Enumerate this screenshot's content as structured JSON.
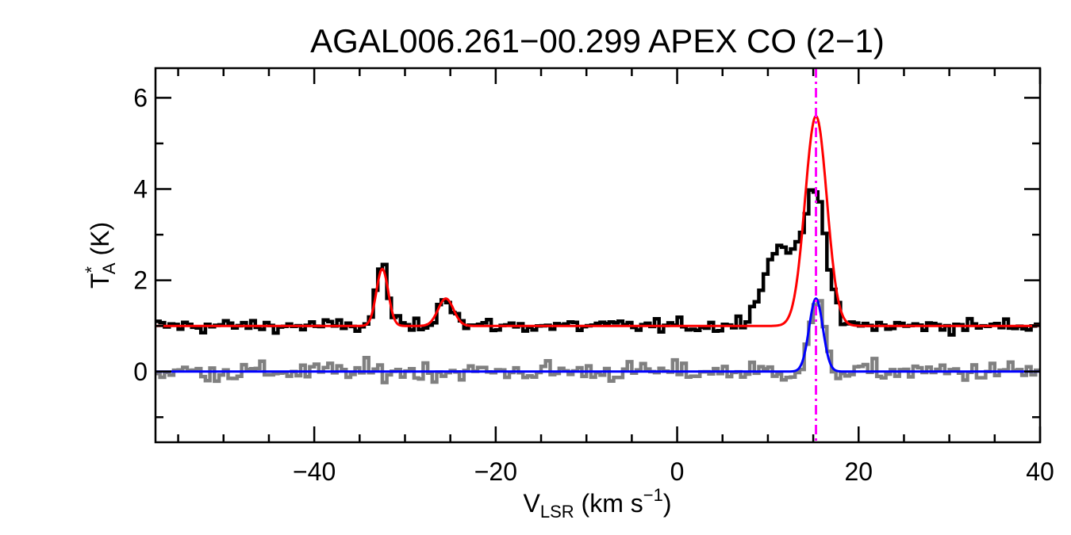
{
  "chart_data": {
    "type": "line",
    "title": "AGAL006.261−00.299  APEX CO (2−1)",
    "xlabel": {
      "main": "V",
      "sub": "LSR",
      "unit_pre": " (km s",
      "sup": "−1",
      "unit_post": ")"
    },
    "ylabel": {
      "main": "T",
      "sup": "*",
      "sub": "A",
      "unit": " (K)"
    },
    "xlim": [
      -57.5,
      40
    ],
    "ylim": [
      -1.55,
      6.65
    ],
    "xticks": [
      -40,
      -20,
      0,
      20,
      40
    ],
    "xtick_labels": [
      "−40",
      "−20",
      "0",
      "20",
      "40"
    ],
    "yticks": [
      0,
      2,
      4,
      6
    ],
    "ytick_labels": [
      "0",
      "2",
      "4",
      "6"
    ],
    "grid": false,
    "reference_line": {
      "x": 15.3,
      "color": "#ff00ff",
      "style": "dash-dot"
    },
    "series": [
      {
        "role": "observed spectrum (offset +1 K)",
        "color": "#000000",
        "style": "histogram",
        "baseline": 1.0,
        "noise_rms": 0.09,
        "components": [
          {
            "center": -32.5,
            "amplitude": 1.35,
            "sigma": 0.65
          },
          {
            "center": -25.5,
            "amplitude": 0.65,
            "sigma": 0.85
          },
          {
            "center": 11.5,
            "amplitude": 1.75,
            "sigma": 1.9
          },
          {
            "center": 15.3,
            "amplitude": 2.85,
            "sigma": 1.15
          }
        ]
      },
      {
        "role": "fit to observed spectrum",
        "color": "#ff0000",
        "style": "line",
        "baseline": 1.0,
        "components": [
          {
            "center": -32.5,
            "amplitude": 1.25,
            "sigma": 0.65
          },
          {
            "center": -25.5,
            "amplitude": 0.6,
            "sigma": 0.85
          },
          {
            "center": 15.3,
            "amplitude": 4.6,
            "sigma": 1.2
          }
        ]
      },
      {
        "role": "second spectrum",
        "color": "#808080",
        "style": "histogram",
        "baseline": 0.0,
        "noise_rms": 0.13,
        "components": [
          {
            "center": 15.4,
            "amplitude": 1.55,
            "sigma": 0.75
          }
        ]
      },
      {
        "role": "fit to second spectrum",
        "color": "#0000ff",
        "style": "line",
        "baseline": 0.0,
        "components": [
          {
            "center": 15.3,
            "amplitude": 1.6,
            "sigma": 0.75
          }
        ]
      }
    ]
  }
}
